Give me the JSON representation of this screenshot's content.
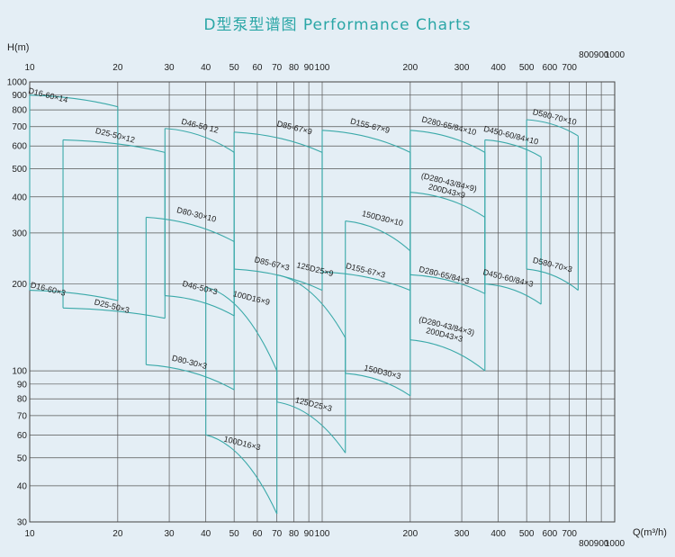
{
  "chart_data": {
    "type": "line",
    "title": "D型泵型谱图 Performance Charts",
    "ylabel": "H(m)",
    "xlabel": "Q(m³/h)",
    "x_scale": "log",
    "y_scale": "log",
    "xlim": [
      10,
      1000
    ],
    "ylim": [
      30,
      1000
    ],
    "x_ticks_top": [
      "10",
      "20",
      "30",
      "40",
      "50",
      "60",
      "70",
      "80",
      "90",
      "100",
      "200",
      "300",
      "400",
      "500",
      "600",
      "700",
      "800",
      "900",
      "1000"
    ],
    "x_ticks_bottom": [
      "10",
      "20",
      "30",
      "40",
      "50",
      "60",
      "70",
      "80",
      "90",
      "100",
      "200",
      "300",
      "400",
      "500",
      "600",
      "700",
      "800",
      "900",
      "1000"
    ],
    "y_ticks": [
      "30",
      "40",
      "50",
      "60",
      "70",
      "80",
      "90",
      "100",
      "200",
      "300",
      "400",
      "500",
      "600",
      "700",
      "800",
      "900",
      "1000"
    ],
    "regions": [
      {
        "q": [
          10,
          20
        ],
        "h_top": [
          900,
          820
        ],
        "h_bottom": [
          190,
          175
        ],
        "labels": [
          {
            "text": "D16-60×14",
            "q": 11.5,
            "h": 880
          },
          {
            "text": "D16-60×3",
            "q": 11.5,
            "h": 188
          }
        ]
      },
      {
        "q": [
          13,
          29
        ],
        "h_top": [
          630,
          570
        ],
        "h_bottom": [
          165,
          152
        ],
        "labels": [
          {
            "text": "D25-50×12",
            "q": 19.5,
            "h": 640
          },
          {
            "text": "D25-50×3",
            "q": 19,
            "h": 164
          }
        ]
      },
      {
        "q": [
          29,
          50
        ],
        "h_top": [
          690,
          570
        ],
        "h_bottom": [
          182,
          155
        ],
        "labels": [
          {
            "text": "D46-50 12",
            "q": 38,
            "h": 690
          },
          {
            "text": "D46-50×3",
            "q": 38,
            "h": 190
          }
        ]
      },
      {
        "q": [
          25,
          50
        ],
        "h_top": [
          340,
          280
        ],
        "h_bottom": [
          105,
          86
        ],
        "labels": [
          {
            "text": "D80-30×10",
            "q": 37,
            "h": 340
          },
          {
            "text": "D80-30×3",
            "q": 35,
            "h": 105
          }
        ]
      },
      {
        "q": [
          50,
          100
        ],
        "h_top": [
          670,
          570
        ],
        "h_bottom": [
          225,
          190
        ],
        "labels": [
          {
            "text": "D85-67×9",
            "q": 80,
            "h": 680
          },
          {
            "text": "D85-67×3",
            "q": 67,
            "h": 230
          }
        ]
      },
      {
        "q": [
          40,
          70
        ],
        "h_top": [
          195,
          100
        ],
        "h_bottom": [
          60,
          32
        ],
        "labels": [
          {
            "text": "100D16×9",
            "q": 57,
            "h": 175
          },
          {
            "text": "100D16×3",
            "q": 53,
            "h": 55
          }
        ]
      },
      {
        "q": [
          70,
          120
        ],
        "h_top": [
          215,
          130
        ],
        "h_bottom": [
          78,
          52
        ],
        "labels": [
          {
            "text": "125D25×9",
            "q": 94,
            "h": 220
          },
          {
            "text": "125D25×3",
            "q": 93,
            "h": 75
          }
        ]
      },
      {
        "q": [
          100,
          200
        ],
        "h_top": [
          680,
          570
        ],
        "h_bottom": [
          220,
          190
        ],
        "labels": [
          {
            "text": "D155-67×9",
            "q": 145,
            "h": 690
          },
          {
            "text": "D155-67×3",
            "q": 140,
            "h": 218
          }
        ]
      },
      {
        "q": [
          120,
          200
        ],
        "h_top": [
          330,
          260
        ],
        "h_bottom": [
          98,
          82
        ],
        "labels": [
          {
            "text": "150D30×10",
            "q": 160,
            "h": 330
          },
          {
            "text": "150D30×3",
            "q": 160,
            "h": 97
          }
        ]
      },
      {
        "q": [
          200,
          360
        ],
        "h_top": [
          680,
          570
        ],
        "h_bottom": [
          215,
          185
        ],
        "labels": [
          {
            "text": "D280-65/84×10",
            "q": 270,
            "h": 690
          },
          {
            "text": "D280-65/84×3",
            "q": 260,
            "h": 210
          }
        ]
      },
      {
        "q": [
          200,
          360
        ],
        "h_top": [
          415,
          340
        ],
        "h_bottom": [
          128,
          100
        ],
        "labels": [
          {
            "text": "(D280-43/84×9) 200D43×9",
            "q": 270,
            "h": 440
          },
          {
            "text": "(D280-43/84×3) 200D43×3",
            "q": 265,
            "h": 140
          }
        ]
      },
      {
        "q": [
          360,
          560
        ],
        "h_top": [
          630,
          550
        ],
        "h_bottom": [
          200,
          170
        ],
        "labels": [
          {
            "text": "D450-60/84×10",
            "q": 440,
            "h": 640
          },
          {
            "text": "D450-60/84×3",
            "q": 430,
            "h": 205
          }
        ]
      },
      {
        "q": [
          500,
          750
        ],
        "h_top": [
          740,
          650
        ],
        "h_bottom": [
          225,
          190
        ],
        "labels": [
          {
            "text": "D580-70×10",
            "q": 620,
            "h": 740
          },
          {
            "text": "D580-70×3",
            "q": 610,
            "h": 228
          }
        ]
      }
    ]
  }
}
